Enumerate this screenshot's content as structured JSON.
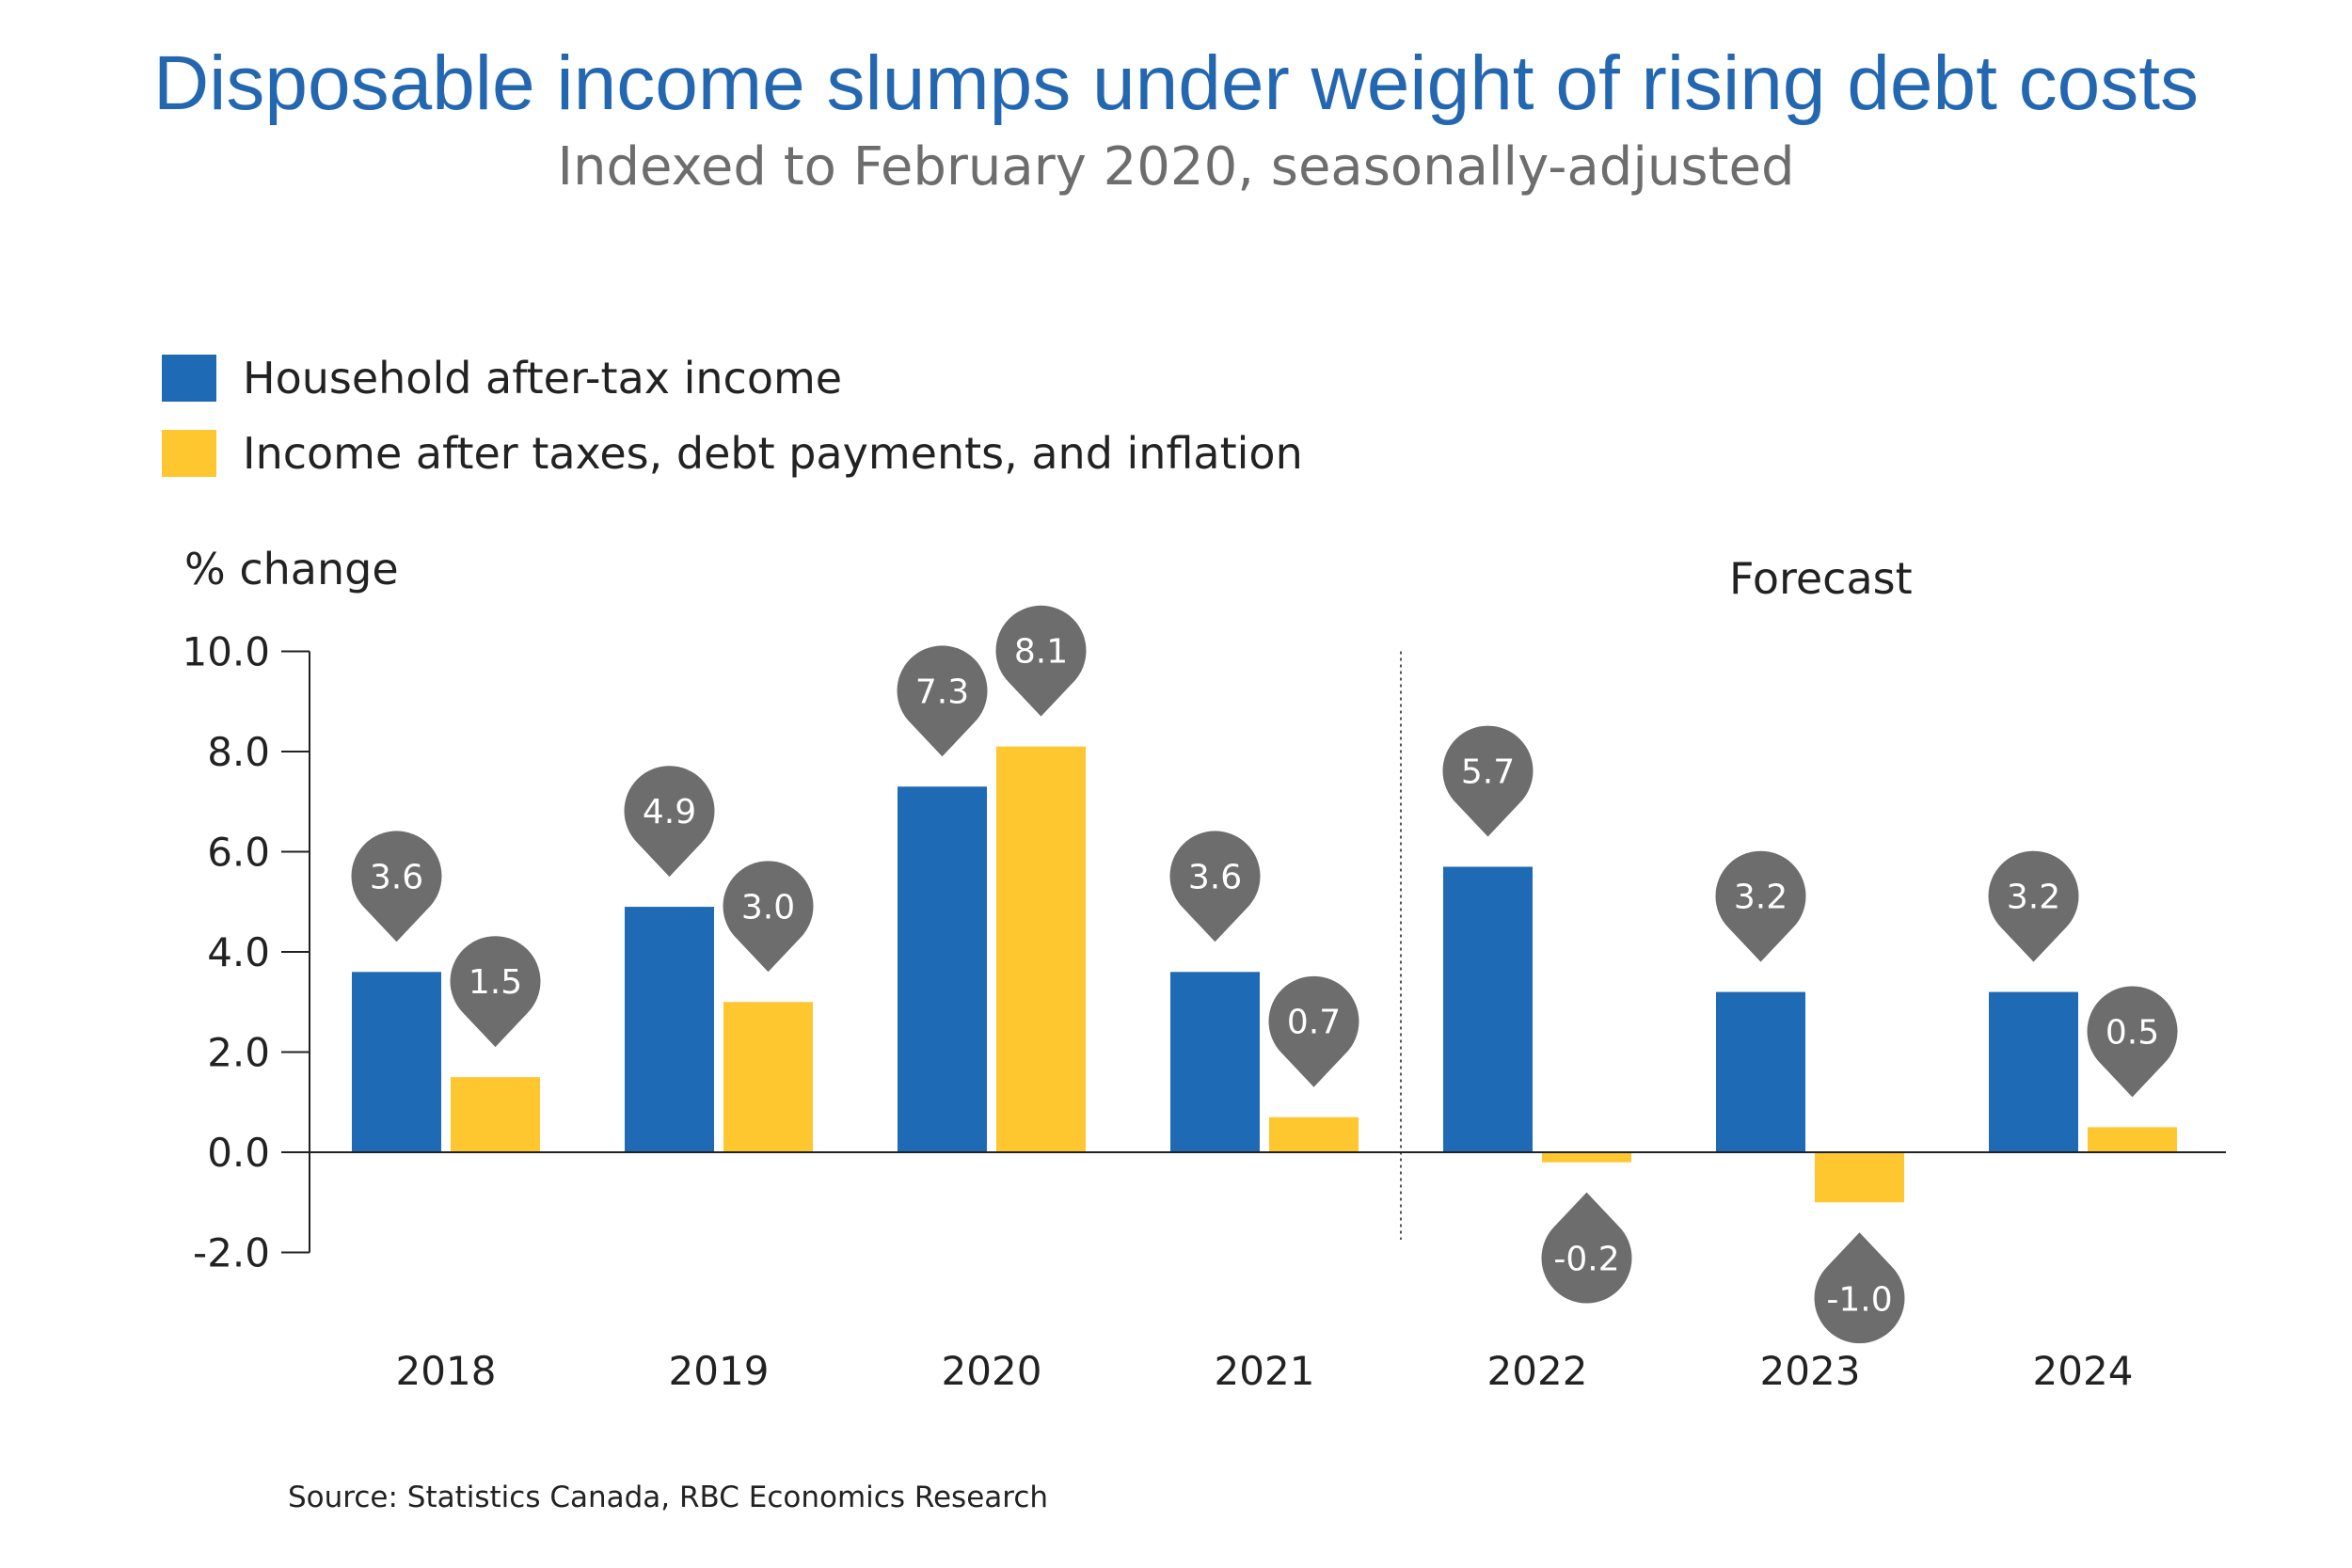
{
  "title": "Disposable income slumps under weight of rising debt costs",
  "subtitle": "Indexed to February 2020, seasonally-adjusted",
  "legend": [
    {
      "label": "Household after-tax income",
      "color": "#1f6ab5"
    },
    {
      "label": "Income after taxes, debt payments, and inflation",
      "color": "#fec62f"
    }
  ],
  "annotation": "Forecast",
  "source": "Source: Statistics Canada, RBC Economics Research",
  "colors": {
    "bubble": "#6d6d6d",
    "axis": "#222222"
  },
  "chart_data": {
    "type": "bar",
    "ylabel": "% change",
    "categories": [
      "2018",
      "2019",
      "2020",
      "2021",
      "2022",
      "2023",
      "2024"
    ],
    "yticks": [
      "10.0",
      "8.0",
      "6.0",
      "4.0",
      "2.0",
      "0.0",
      "-2.0"
    ],
    "ylim": [
      -2,
      10
    ],
    "forecast_from": "2022",
    "grid": false,
    "legend_position": "top-left",
    "series": [
      {
        "name": "Household after-tax income",
        "color": "#1f6ab5",
        "values": [
          3.6,
          4.9,
          7.3,
          3.6,
          5.7,
          3.2,
          3.2
        ],
        "labels": [
          "3.6",
          "4.9",
          "7.3",
          "3.6",
          "5.7",
          "3.2",
          "3.2"
        ]
      },
      {
        "name": "Income after taxes, debt payments, and inflation",
        "color": "#fec62f",
        "values": [
          1.5,
          3.0,
          8.1,
          0.7,
          -0.2,
          -1.0,
          0.5
        ],
        "labels": [
          "1.5",
          "3.0",
          "8.1",
          "0.7",
          "-0.2",
          "-1.0",
          "0.5"
        ]
      }
    ]
  }
}
